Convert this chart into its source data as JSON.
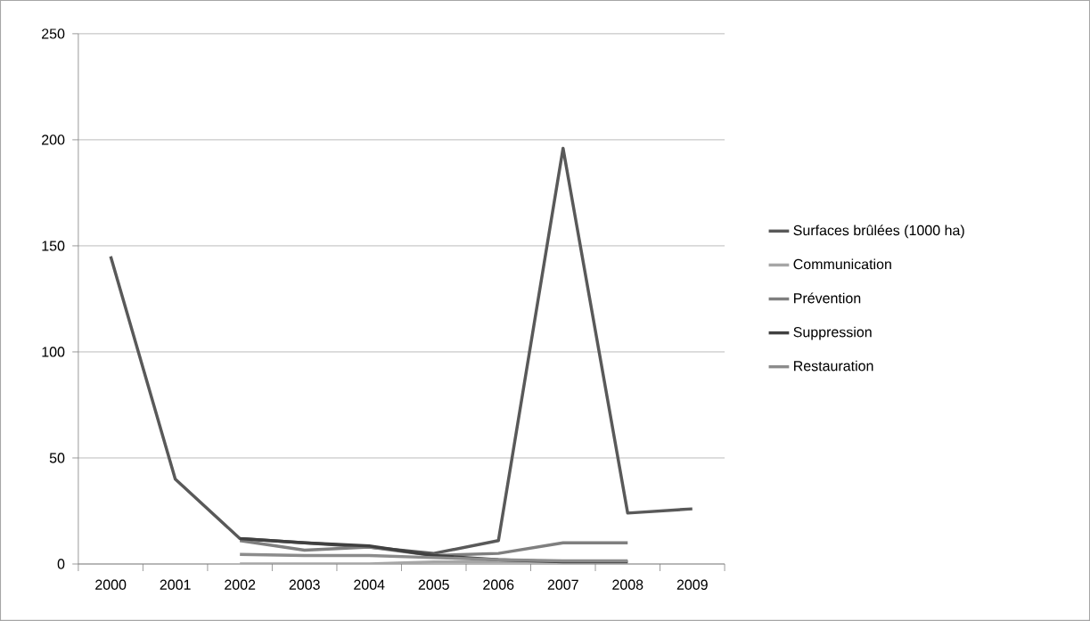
{
  "chart_data": {
    "type": "line",
    "categories": [
      "2000",
      "2001",
      "2002",
      "2003",
      "2004",
      "2005",
      "2006",
      "2007",
      "2008",
      "2009"
    ],
    "series": [
      {
        "name": "Surfaces brûlées (1000 ha)",
        "color": "#595959",
        "values": [
          145,
          40,
          12,
          10,
          8,
          5,
          11,
          196,
          24,
          26
        ]
      },
      {
        "name": "Communication",
        "color": "#a6a6a6",
        "values": [
          null,
          null,
          0,
          0,
          0,
          1,
          1,
          1,
          1,
          null
        ]
      },
      {
        "name": "Prévention",
        "color": "#7f7f7f",
        "values": [
          null,
          null,
          11,
          6.5,
          8,
          4,
          5,
          10,
          10,
          null
        ]
      },
      {
        "name": "Suppression",
        "color": "#404040",
        "values": [
          null,
          null,
          12,
          10,
          8.5,
          4,
          2,
          1,
          1,
          null
        ]
      },
      {
        "name": "Restauration",
        "color": "#8c8c8c",
        "values": [
          null,
          null,
          4.5,
          4,
          4,
          3,
          2,
          1.5,
          1.5,
          null
        ]
      }
    ],
    "ylim": [
      0,
      250
    ],
    "yticks": [
      0,
      50,
      100,
      150,
      200,
      250
    ],
    "grid": "y",
    "legend": "right",
    "marker": "none",
    "line_style": "solid"
  }
}
